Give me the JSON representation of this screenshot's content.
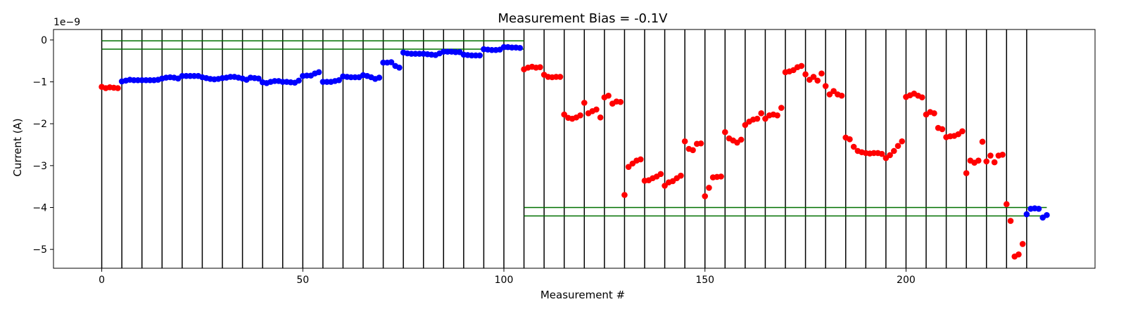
{
  "chart_data": {
    "type": "scatter",
    "title": "Measurement Bias = -0.1V",
    "xlabel": "Measurement #",
    "ylabel": "Current (A)",
    "y_offset_text": "1e−9",
    "xlim": [
      -12,
      247
    ],
    "ylim": [
      -5.45,
      0.25
    ],
    "x_ticks": [
      0,
      50,
      100,
      150,
      200
    ],
    "x_tick_labels": [
      "0",
      "50",
      "100",
      "150",
      "200"
    ],
    "y_ticks": [
      0,
      -1,
      -2,
      -3,
      -4,
      -5
    ],
    "y_tick_labels": [
      "0",
      "−1",
      "−2",
      "−3",
      "−4",
      "−5"
    ],
    "grid": false,
    "vertical_lines_x": [
      0,
      5,
      10,
      15,
      20,
      25,
      30,
      35,
      40,
      45,
      50,
      55,
      60,
      65,
      70,
      75,
      80,
      85,
      90,
      95,
      100,
      105,
      110,
      115,
      120,
      125,
      130,
      135,
      140,
      145,
      150,
      155,
      160,
      165,
      170,
      175,
      180,
      185,
      190,
      195,
      200,
      205,
      210,
      215,
      220,
      225,
      230
    ],
    "reference_lines": [
      {
        "y": -0.02,
        "x_range": [
          0,
          105
        ],
        "color": "#007000"
      },
      {
        "y": -0.22,
        "x_range": [
          0,
          105
        ],
        "color": "#007000"
      },
      {
        "y": -4.0,
        "x_range": [
          105,
          235
        ],
        "color": "#007000"
      },
      {
        "y": -4.2,
        "x_range": [
          105,
          235
        ],
        "color": "#007000"
      }
    ],
    "series": [
      {
        "color": "#0000ff",
        "points": [
          [
            5,
            -0.99
          ],
          [
            6,
            -0.97
          ],
          [
            7,
            -0.95
          ],
          [
            8,
            -0.96
          ],
          [
            9,
            -0.96
          ],
          [
            10,
            -0.96
          ],
          [
            11,
            -0.96
          ],
          [
            12,
            -0.96
          ],
          [
            13,
            -0.96
          ],
          [
            14,
            -0.95
          ],
          [
            15,
            -0.92
          ],
          [
            16,
            -0.9
          ],
          [
            17,
            -0.89
          ],
          [
            18,
            -0.9
          ],
          [
            19,
            -0.92
          ],
          [
            20,
            -0.86
          ],
          [
            21,
            -0.86
          ],
          [
            22,
            -0.86
          ],
          [
            23,
            -0.86
          ],
          [
            24,
            -0.86
          ],
          [
            25,
            -0.89
          ],
          [
            26,
            -0.91
          ],
          [
            27,
            -0.93
          ],
          [
            28,
            -0.94
          ],
          [
            29,
            -0.93
          ],
          [
            30,
            -0.91
          ],
          [
            31,
            -0.9
          ],
          [
            32,
            -0.88
          ],
          [
            33,
            -0.88
          ],
          [
            34,
            -0.9
          ],
          [
            35,
            -0.92
          ],
          [
            36,
            -0.95
          ],
          [
            37,
            -0.9
          ],
          [
            38,
            -0.91
          ],
          [
            39,
            -0.92
          ],
          [
            40,
            -1.01
          ],
          [
            41,
            -1.03
          ],
          [
            42,
            -1.0
          ],
          [
            43,
            -0.98
          ],
          [
            44,
            -0.98
          ],
          [
            45,
            -1.0
          ],
          [
            46,
            -1.0
          ],
          [
            47,
            -1.01
          ],
          [
            48,
            -1.02
          ],
          [
            49,
            -0.97
          ],
          [
            50,
            -0.86
          ],
          [
            51,
            -0.85
          ],
          [
            52,
            -0.85
          ],
          [
            53,
            -0.8
          ],
          [
            54,
            -0.77
          ],
          [
            55,
            -1.0
          ],
          [
            56,
            -1.0
          ],
          [
            57,
            -1.0
          ],
          [
            58,
            -0.98
          ],
          [
            59,
            -0.96
          ],
          [
            60,
            -0.87
          ],
          [
            61,
            -0.88
          ],
          [
            62,
            -0.89
          ],
          [
            63,
            -0.89
          ],
          [
            64,
            -0.89
          ],
          [
            65,
            -0.84
          ],
          [
            66,
            -0.86
          ],
          [
            67,
            -0.89
          ],
          [
            68,
            -0.93
          ],
          [
            69,
            -0.9
          ],
          [
            70,
            -0.54
          ],
          [
            71,
            -0.54
          ],
          [
            72,
            -0.53
          ],
          [
            73,
            -0.62
          ],
          [
            74,
            -0.66
          ],
          [
            75,
            -0.3
          ],
          [
            76,
            -0.32
          ],
          [
            77,
            -0.33
          ],
          [
            78,
            -0.33
          ],
          [
            79,
            -0.33
          ],
          [
            80,
            -0.33
          ],
          [
            81,
            -0.34
          ],
          [
            82,
            -0.35
          ],
          [
            83,
            -0.36
          ],
          [
            84,
            -0.32
          ],
          [
            85,
            -0.28
          ],
          [
            86,
            -0.28
          ],
          [
            87,
            -0.28
          ],
          [
            88,
            -0.29
          ],
          [
            89,
            -0.29
          ],
          [
            90,
            -0.35
          ],
          [
            91,
            -0.36
          ],
          [
            92,
            -0.37
          ],
          [
            93,
            -0.37
          ],
          [
            94,
            -0.37
          ],
          [
            95,
            -0.22
          ],
          [
            96,
            -0.23
          ],
          [
            97,
            -0.24
          ],
          [
            98,
            -0.24
          ],
          [
            99,
            -0.23
          ],
          [
            100,
            -0.17
          ],
          [
            101,
            -0.17
          ],
          [
            102,
            -0.18
          ],
          [
            103,
            -0.18
          ],
          [
            104,
            -0.19
          ],
          [
            230,
            -4.16
          ],
          [
            231,
            -4.03
          ],
          [
            232,
            -4.02
          ],
          [
            233,
            -4.03
          ],
          [
            234,
            -4.24
          ],
          [
            235,
            -4.18
          ]
        ]
      },
      {
        "color": "#ff0000",
        "points": [
          [
            0,
            -1.12
          ],
          [
            1,
            -1.15
          ],
          [
            2,
            -1.13
          ],
          [
            3,
            -1.14
          ],
          [
            4,
            -1.15
          ],
          [
            105,
            -0.7
          ],
          [
            106,
            -0.66
          ],
          [
            107,
            -0.64
          ],
          [
            108,
            -0.66
          ],
          [
            109,
            -0.65
          ],
          [
            110,
            -0.83
          ],
          [
            111,
            -0.88
          ],
          [
            112,
            -0.89
          ],
          [
            113,
            -0.88
          ],
          [
            114,
            -0.88
          ],
          [
            115,
            -1.78
          ],
          [
            116,
            -1.86
          ],
          [
            117,
            -1.88
          ],
          [
            118,
            -1.85
          ],
          [
            119,
            -1.8
          ],
          [
            120,
            -1.5
          ],
          [
            121,
            -1.75
          ],
          [
            122,
            -1.7
          ],
          [
            123,
            -1.66
          ],
          [
            124,
            -1.85
          ],
          [
            125,
            -1.37
          ],
          [
            126,
            -1.33
          ],
          [
            127,
            -1.52
          ],
          [
            128,
            -1.47
          ],
          [
            129,
            -1.48
          ],
          [
            130,
            -3.7
          ],
          [
            131,
            -3.03
          ],
          [
            132,
            -2.95
          ],
          [
            133,
            -2.88
          ],
          [
            134,
            -2.85
          ],
          [
            135,
            -3.36
          ],
          [
            136,
            -3.35
          ],
          [
            137,
            -3.3
          ],
          [
            138,
            -3.26
          ],
          [
            139,
            -3.2
          ],
          [
            140,
            -3.48
          ],
          [
            141,
            -3.4
          ],
          [
            142,
            -3.37
          ],
          [
            143,
            -3.3
          ],
          [
            144,
            -3.24
          ],
          [
            145,
            -2.42
          ],
          [
            146,
            -2.6
          ],
          [
            147,
            -2.63
          ],
          [
            148,
            -2.48
          ],
          [
            149,
            -2.47
          ],
          [
            150,
            -3.73
          ],
          [
            151,
            -3.53
          ],
          [
            152,
            -3.28
          ],
          [
            153,
            -3.27
          ],
          [
            154,
            -3.26
          ],
          [
            155,
            -2.2
          ],
          [
            156,
            -2.35
          ],
          [
            157,
            -2.4
          ],
          [
            158,
            -2.45
          ],
          [
            159,
            -2.38
          ],
          [
            160,
            -2.03
          ],
          [
            161,
            -1.95
          ],
          [
            162,
            -1.9
          ],
          [
            163,
            -1.88
          ],
          [
            164,
            -1.75
          ],
          [
            165,
            -1.88
          ],
          [
            166,
            -1.8
          ],
          [
            167,
            -1.78
          ],
          [
            168,
            -1.8
          ],
          [
            169,
            -1.62
          ],
          [
            170,
            -0.77
          ],
          [
            171,
            -0.75
          ],
          [
            172,
            -0.72
          ],
          [
            173,
            -0.65
          ],
          [
            174,
            -0.62
          ],
          [
            175,
            -0.82
          ],
          [
            176,
            -0.95
          ],
          [
            177,
            -0.88
          ],
          [
            178,
            -0.97
          ],
          [
            179,
            -0.8
          ],
          [
            180,
            -1.1
          ],
          [
            181,
            -1.3
          ],
          [
            182,
            -1.22
          ],
          [
            183,
            -1.3
          ],
          [
            184,
            -1.33
          ],
          [
            185,
            -2.33
          ],
          [
            186,
            -2.37
          ],
          [
            187,
            -2.55
          ],
          [
            188,
            -2.65
          ],
          [
            189,
            -2.68
          ],
          [
            190,
            -2.7
          ],
          [
            191,
            -2.71
          ],
          [
            192,
            -2.7
          ],
          [
            193,
            -2.7
          ],
          [
            194,
            -2.72
          ],
          [
            195,
            -2.82
          ],
          [
            196,
            -2.75
          ],
          [
            197,
            -2.65
          ],
          [
            198,
            -2.53
          ],
          [
            199,
            -2.42
          ],
          [
            200,
            -1.36
          ],
          [
            201,
            -1.32
          ],
          [
            202,
            -1.28
          ],
          [
            203,
            -1.33
          ],
          [
            204,
            -1.37
          ],
          [
            205,
            -1.78
          ],
          [
            206,
            -1.72
          ],
          [
            207,
            -1.75
          ],
          [
            208,
            -2.1
          ],
          [
            209,
            -2.13
          ],
          [
            210,
            -2.32
          ],
          [
            211,
            -2.3
          ],
          [
            212,
            -2.29
          ],
          [
            213,
            -2.25
          ],
          [
            214,
            -2.18
          ],
          [
            215,
            -3.18
          ],
          [
            216,
            -2.88
          ],
          [
            217,
            -2.93
          ],
          [
            218,
            -2.88
          ],
          [
            219,
            -2.43
          ],
          [
            220,
            -2.9
          ],
          [
            221,
            -2.76
          ],
          [
            222,
            -2.92
          ],
          [
            223,
            -2.76
          ],
          [
            224,
            -2.74
          ],
          [
            225,
            -3.92
          ],
          [
            226,
            -4.32
          ],
          [
            227,
            -5.17
          ],
          [
            228,
            -5.12
          ],
          [
            229,
            -4.87
          ]
        ]
      }
    ]
  }
}
